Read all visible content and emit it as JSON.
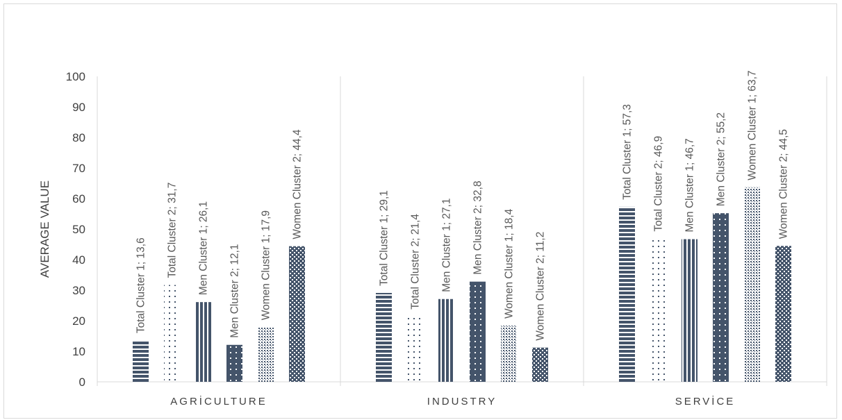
{
  "chart_data": {
    "type": "bar",
    "categories": [
      "AGRİCULTURE",
      "INDUSTRY",
      "SERVİCE"
    ],
    "ylabel": "AVERAGE VALUE",
    "ylim": [
      0,
      100
    ],
    "yticks": [
      0,
      10,
      20,
      30,
      40,
      50,
      60,
      70,
      80,
      90,
      100
    ],
    "grid": false,
    "series": [
      {
        "name": "Total Cluster 1",
        "values": [
          13.6,
          29.1,
          57.3
        ],
        "pattern": "horizontal-stripes"
      },
      {
        "name": "Total Cluster 2",
        "values": [
          31.7,
          21.4,
          46.9
        ],
        "pattern": "sparse-dots"
      },
      {
        "name": "Men Cluster 1",
        "values": [
          26.1,
          27.1,
          46.7
        ],
        "pattern": "vertical-stripes"
      },
      {
        "name": "Men Cluster 2",
        "values": [
          12.1,
          32.8,
          55.2
        ],
        "pattern": "dark-dots"
      },
      {
        "name": "Women Cluster 1",
        "values": [
          17.9,
          18.4,
          63.7
        ],
        "pattern": "fine-dots"
      },
      {
        "name": "Women Cluster 2",
        "values": [
          44.4,
          11.2,
          44.5
        ],
        "pattern": "checker"
      }
    ],
    "data_labels": [
      [
        "Total Cluster 1; 13,6",
        "Total Cluster 1; 29,1",
        "Total Cluster 1; 57,3"
      ],
      [
        "Total Cluster 2; 31,7",
        "Total Cluster 2; 21,4",
        "Total Cluster 2; 46,9"
      ],
      [
        "Men Cluster 1; 26,1",
        "Men Cluster 1; 27,1",
        "Men Cluster 1; 46,7"
      ],
      [
        "Men Cluster 2; 12,1",
        "Men Cluster 2; 32,8",
        "Men Cluster 2; 55,2"
      ],
      [
        "Women Cluster 1; 17,9",
        "Women Cluster 1; 18,4",
        "Women Cluster 1; 63,7"
      ],
      [
        "Women Cluster 2; 44,4",
        "Women Cluster 2; 11,2",
        "Women Cluster 2; 44,5"
      ]
    ],
    "colors": {
      "bar": "#44546a",
      "axis": "#d9d9d9",
      "text": "#404040",
      "label": "#595959"
    }
  }
}
